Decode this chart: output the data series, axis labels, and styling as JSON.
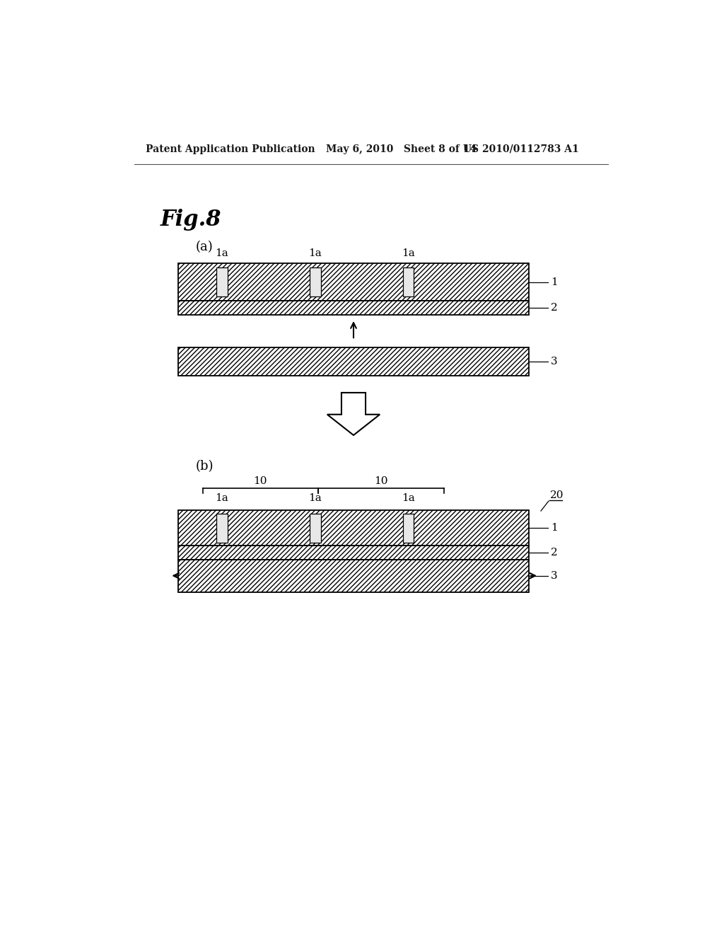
{
  "bg_color": "#ffffff",
  "header_text_left": "Patent Application Publication",
  "header_text_mid": "May 6, 2010   Sheet 8 of 14",
  "header_text_right": "US 2010/0112783 A1",
  "fig_label": "Fig.8",
  "part_a_label": "(a)",
  "part_b_label": "(b)",
  "label_1a": "1a",
  "label_1": "1",
  "label_2": "2",
  "label_3": "3",
  "label_10": "10",
  "label_20": "20"
}
